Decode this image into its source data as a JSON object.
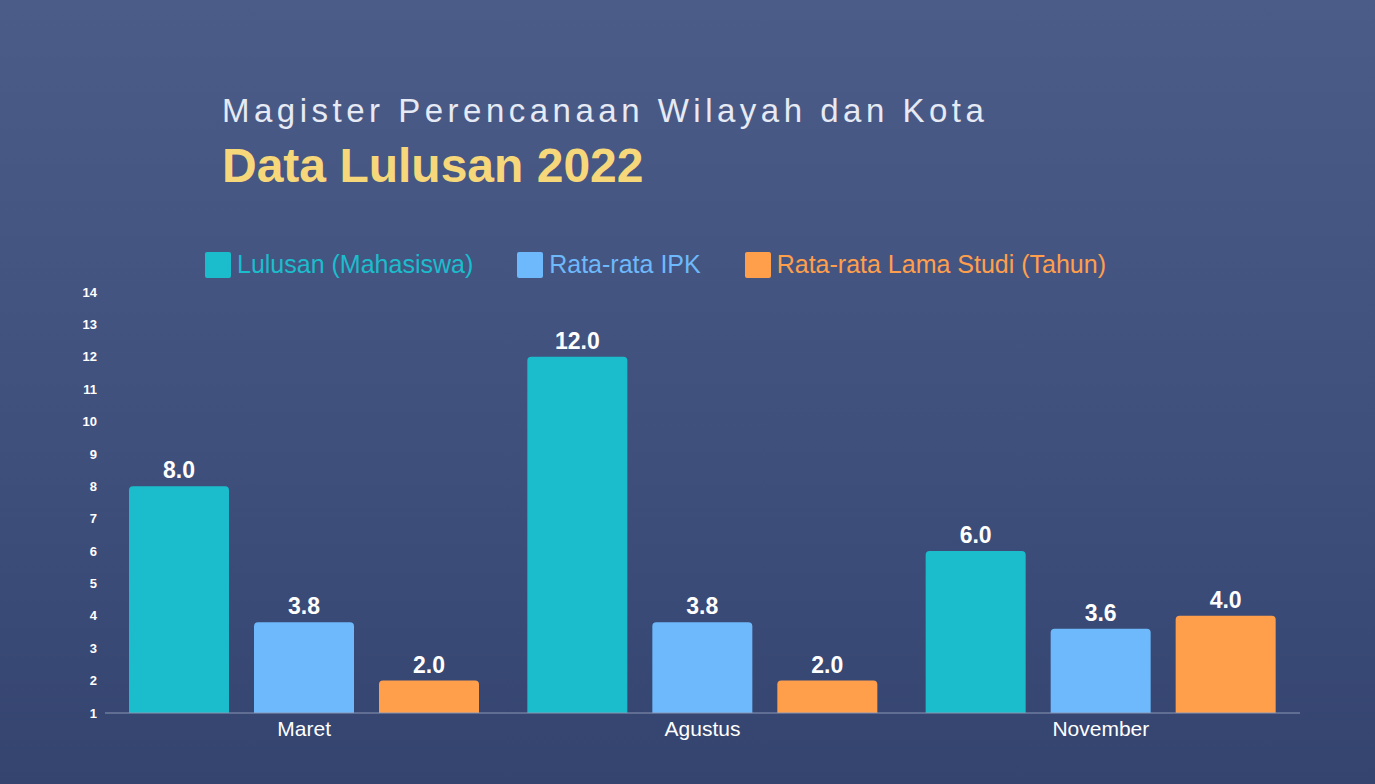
{
  "chart_data": {
    "type": "bar",
    "title": "Data Lulusan 2022",
    "subtitle": "Magister Perencanaan Wilayah dan Kota",
    "categories": [
      "Maret",
      "Agustus",
      "November"
    ],
    "series": [
      {
        "name": "Lulusan (Mahasiswa)",
        "color": "#1bbdcc",
        "values": [
          8,
          12,
          6
        ],
        "value_labels": [
          "8.0",
          "12.0",
          "6.0"
        ]
      },
      {
        "name": "Rata-rata IPK",
        "color": "#6db9fb",
        "values": [
          3.8,
          3.8,
          3.6
        ],
        "value_labels": [
          "3.8",
          "3.8",
          "3.6"
        ]
      },
      {
        "name": "Rata-rata Lama Studi (Tahun)",
        "color": "#ff9f4c",
        "values": [
          2,
          2,
          4
        ],
        "value_labels": [
          "2.0",
          "2.0",
          "4.0"
        ]
      }
    ],
    "ylim": [
      1,
      14
    ],
    "yticks": [
      1,
      2,
      3,
      4,
      5,
      6,
      7,
      8,
      9,
      10,
      11,
      12,
      13,
      14
    ],
    "grid": false,
    "legend": "top",
    "data_labels": true
  }
}
